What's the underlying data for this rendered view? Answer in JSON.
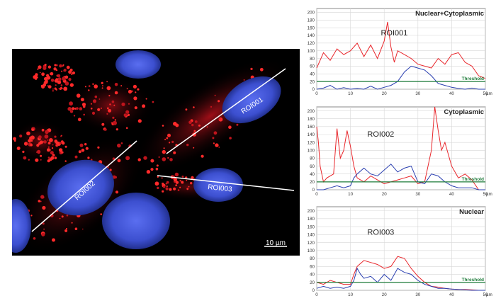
{
  "micrograph": {
    "roi_labels": [
      "ROI001",
      "ROI002",
      "ROI003"
    ],
    "scale_bar_label": "10 µm"
  },
  "chart_data": [
    {
      "type": "line",
      "title": "Nuclear+Cytoplasmic",
      "annotation": "ROI001",
      "threshold_label": "Threshold",
      "xlabel": "µm",
      "xlim": [
        0,
        50
      ],
      "ylim": [
        0,
        210
      ],
      "x_ticks": [
        0,
        10,
        20,
        30,
        40,
        50
      ],
      "y_ticks": [
        0,
        20,
        40,
        60,
        80,
        100,
        120,
        140,
        160,
        180,
        200
      ],
      "threshold": 20,
      "colors": {
        "red": "#e8262b",
        "blue": "#2a3fb0",
        "threshold": "#1e7b3a"
      },
      "series": [
        {
          "color": "red",
          "x": [
            0,
            2,
            4,
            6,
            8,
            10,
            12,
            14,
            16,
            18,
            20,
            21,
            22,
            23,
            24,
            26,
            28,
            30,
            32,
            34,
            36,
            38,
            40,
            42,
            44,
            46,
            48,
            50
          ],
          "y": [
            55,
            95,
            75,
            105,
            90,
            100,
            120,
            85,
            115,
            80,
            125,
            175,
            110,
            70,
            100,
            90,
            80,
            65,
            60,
            55,
            80,
            65,
            90,
            95,
            70,
            60,
            35,
            28
          ]
        },
        {
          "color": "blue",
          "x": [
            0,
            2,
            4,
            6,
            8,
            10,
            12,
            14,
            16,
            18,
            20,
            22,
            24,
            26,
            28,
            30,
            32,
            34,
            36,
            38,
            40,
            42,
            44,
            46,
            48,
            50
          ],
          "y": [
            0,
            3,
            10,
            0,
            4,
            0,
            2,
            0,
            8,
            0,
            5,
            10,
            20,
            45,
            60,
            55,
            50,
            35,
            15,
            10,
            5,
            2,
            0,
            3,
            0,
            0
          ]
        }
      ]
    },
    {
      "type": "line",
      "title": "Cytoplasmic",
      "annotation": "ROI002",
      "threshold_label": "Threshold",
      "xlabel": "µm",
      "xlim": [
        0,
        50
      ],
      "ylim": [
        0,
        210
      ],
      "x_ticks": [
        0,
        10,
        20,
        30,
        40,
        50
      ],
      "y_ticks": [
        0,
        20,
        40,
        60,
        80,
        100,
        120,
        140,
        160,
        180,
        200
      ],
      "threshold": 20,
      "colors": {
        "red": "#e8262b",
        "blue": "#2a3fb0",
        "threshold": "#1e7b3a"
      },
      "series": [
        {
          "color": "red",
          "x": [
            0,
            0.5,
            1,
            2,
            3,
            5,
            6,
            7,
            8,
            9,
            10,
            11,
            12,
            14,
            16,
            18,
            20,
            22,
            24,
            26,
            28,
            30,
            32,
            34,
            35,
            36,
            37,
            38,
            40,
            42,
            44,
            46,
            48,
            50
          ],
          "y": [
            160,
            120,
            60,
            20,
            30,
            40,
            155,
            80,
            100,
            150,
            110,
            60,
            30,
            20,
            35,
            25,
            15,
            20,
            25,
            30,
            35,
            15,
            20,
            100,
            210,
            150,
            100,
            120,
            60,
            30,
            40,
            25,
            0,
            0
          ]
        },
        {
          "color": "blue",
          "x": [
            0,
            2,
            4,
            6,
            8,
            10,
            11,
            12,
            14,
            16,
            18,
            20,
            22,
            24,
            26,
            28,
            30,
            32,
            34,
            36,
            38,
            40,
            42,
            44,
            46,
            48,
            50
          ],
          "y": [
            0,
            0,
            5,
            10,
            5,
            10,
            30,
            40,
            55,
            40,
            35,
            50,
            65,
            45,
            55,
            60,
            20,
            15,
            40,
            35,
            20,
            10,
            5,
            5,
            5,
            0,
            0
          ]
        }
      ]
    },
    {
      "type": "line",
      "title": "Nuclear",
      "annotation": "ROI003",
      "threshold_label": "Threshold",
      "xlabel": "µm",
      "xlim": [
        0,
        50
      ],
      "ylim": [
        0,
        210
      ],
      "x_ticks": [
        0,
        10,
        20,
        30,
        40,
        50
      ],
      "y_ticks": [
        0,
        20,
        40,
        60,
        80,
        100,
        120,
        140,
        160,
        180,
        200
      ],
      "threshold": 20,
      "colors": {
        "red": "#e8262b",
        "blue": "#2a3fb0",
        "threshold": "#1e7b3a"
      },
      "series": [
        {
          "color": "red",
          "x": [
            0,
            2,
            4,
            6,
            8,
            10,
            11,
            12,
            14,
            16,
            18,
            20,
            22,
            24,
            26,
            28,
            30,
            32,
            34,
            36,
            38,
            40,
            42,
            44,
            46,
            48,
            50
          ],
          "y": [
            20,
            15,
            25,
            20,
            15,
            15,
            40,
            60,
            75,
            70,
            65,
            55,
            60,
            85,
            80,
            55,
            35,
            20,
            10,
            8,
            5,
            3,
            2,
            2,
            1,
            0,
            0
          ]
        },
        {
          "color": "blue",
          "x": [
            0,
            2,
            4,
            6,
            8,
            10,
            11,
            12,
            13,
            14,
            16,
            18,
            20,
            22,
            24,
            26,
            28,
            30,
            32,
            34,
            36,
            38,
            40,
            42,
            44,
            46,
            48,
            50
          ],
          "y": [
            5,
            10,
            5,
            8,
            5,
            10,
            25,
            55,
            40,
            30,
            35,
            20,
            40,
            25,
            55,
            45,
            40,
            25,
            15,
            10,
            5,
            5,
            3,
            2,
            1,
            0,
            0,
            0
          ]
        }
      ]
    }
  ]
}
